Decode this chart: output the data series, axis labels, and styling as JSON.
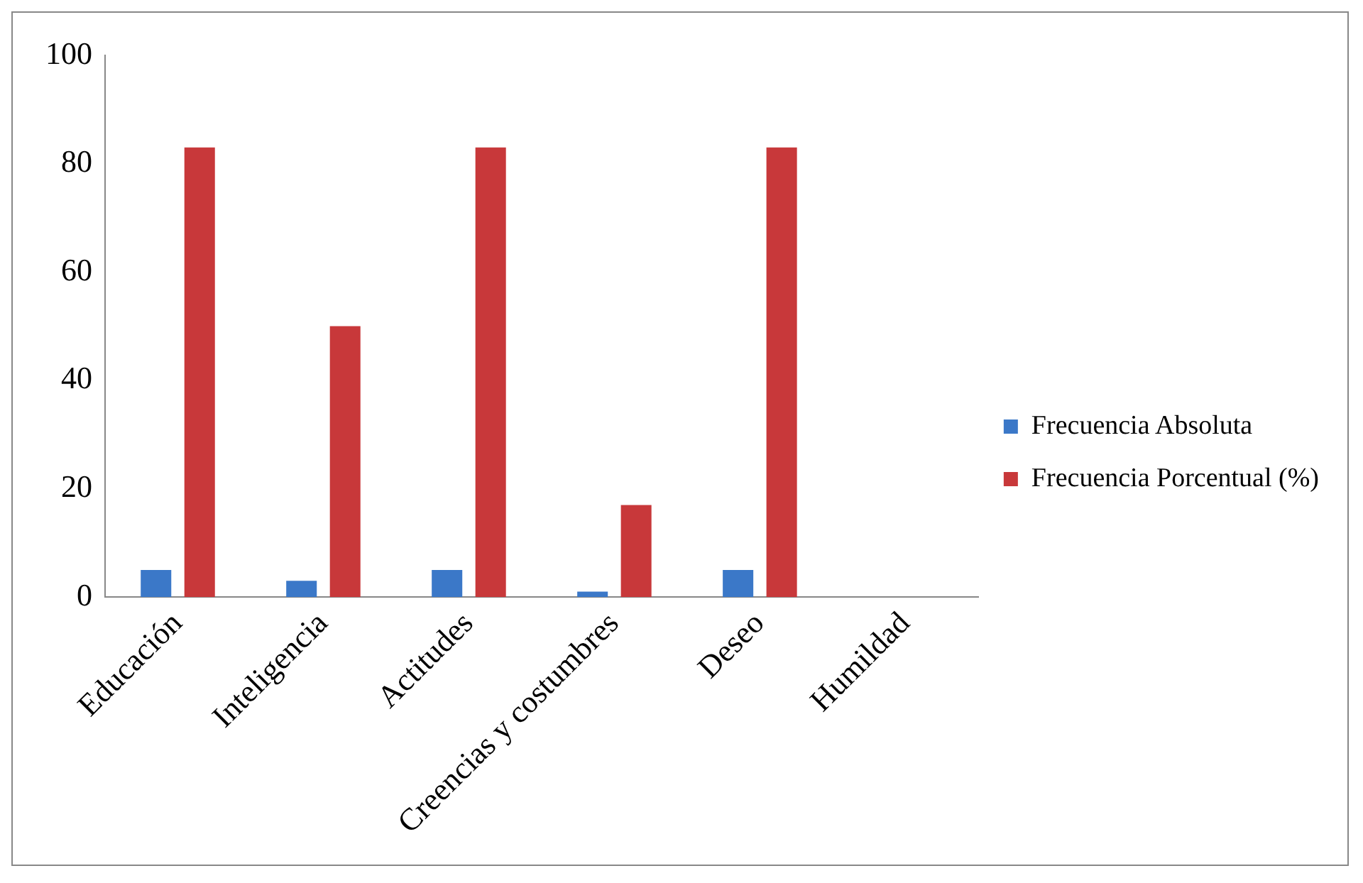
{
  "chart_data": {
    "type": "bar",
    "categories": [
      "Educación",
      "Inteligencia",
      "Actitudes",
      "Creencias y costumbres",
      "Deseo",
      "Humildad"
    ],
    "series": [
      {
        "name": "Frecuencia Absoluta",
        "color": "#3b78c8",
        "values": [
          5,
          3,
          5,
          1,
          5,
          0
        ]
      },
      {
        "name": "Frecuencia Porcentual (%)",
        "color": "#c8383a",
        "values": [
          83,
          50,
          83,
          17,
          83,
          0
        ]
      }
    ],
    "ylim": [
      0,
      100
    ],
    "yticks": [
      0,
      20,
      40,
      60,
      80,
      100
    ],
    "grid": false,
    "legend": "right"
  }
}
